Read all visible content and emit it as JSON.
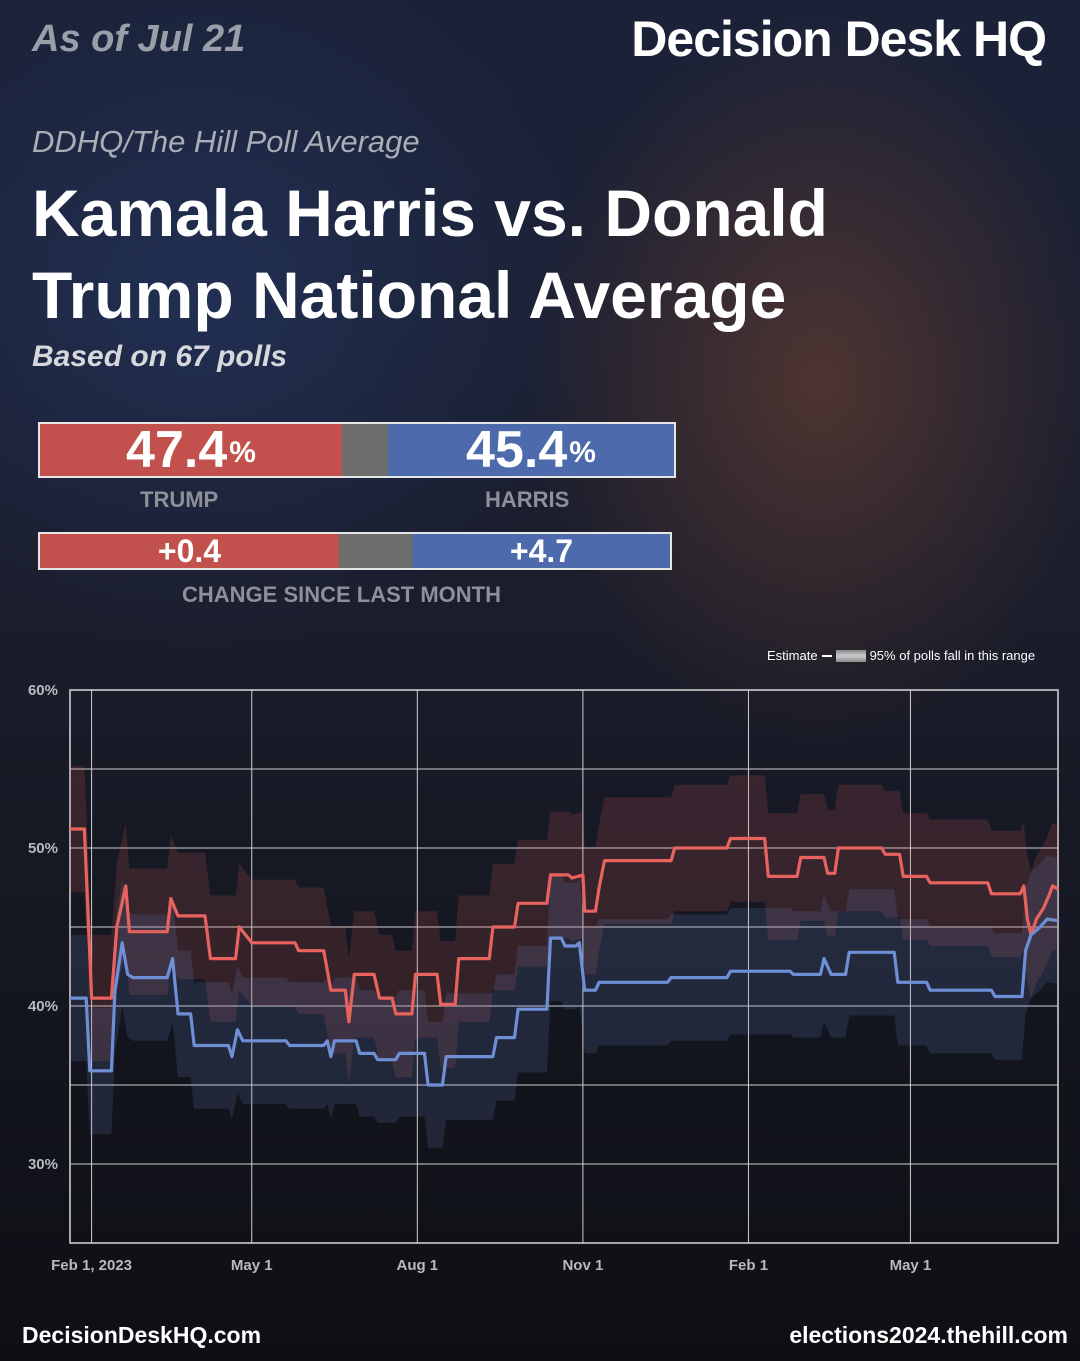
{
  "header": {
    "as_of": "As of Jul 21",
    "logo": "Decision Desk HQ",
    "kicker": "DDHQ/The Hill Poll Average",
    "title": "Kamala Harris vs. Donald Trump National Average",
    "subtitle": "Based on 67 polls"
  },
  "summary": {
    "trump_value": "47.4",
    "harris_value": "45.4",
    "pct_sign": "%",
    "trump_label": "TRUMP",
    "harris_label": "HARRIS",
    "trump_change": "+0.4",
    "harris_change": "+4.7",
    "change_label": "CHANGE SINCE LAST MONTH"
  },
  "legend": {
    "estimate": "Estimate",
    "range": "95% of polls fall in this range"
  },
  "footer": {
    "left": "DecisionDeskHQ.com",
    "right": "elections2024.thehill.com"
  },
  "colors": {
    "trump": "#e8635d",
    "harris": "#6e8fd6",
    "trump_bar": "#c2504c",
    "harris_bar": "#4d6aad"
  },
  "chart_data": {
    "type": "line",
    "title": "Kamala Harris vs. Donald Trump National Average",
    "xlabel": "",
    "ylabel": "",
    "ylim": [
      25,
      60
    ],
    "xlim": [
      "2023-01-20",
      "2024-07-22"
    ],
    "y_ticks": [
      {
        "value": 60,
        "label": "60%"
      },
      {
        "value": 50,
        "label": "50%"
      },
      {
        "value": 40,
        "label": "40%"
      },
      {
        "value": 30,
        "label": "30%"
      }
    ],
    "x_ticks": [
      {
        "date": "2023-02-01",
        "label": "Feb 1, 2023"
      },
      {
        "date": "2023-05-01",
        "label": "May 1"
      },
      {
        "date": "2023-08-01",
        "label": "Aug 1"
      },
      {
        "date": "2023-11-01",
        "label": "Nov 1"
      },
      {
        "date": "2024-02-01",
        "label": "Feb 1"
      },
      {
        "date": "2024-05-01",
        "label": "May 1"
      }
    ],
    "grid": true,
    "series": [
      {
        "name": "TRUMP",
        "color": "#e8635d",
        "band": 4,
        "points": [
          [
            "2023-01-20",
            51.2
          ],
          [
            "2023-01-28",
            51.2
          ],
          [
            "2023-02-01",
            40.5
          ],
          [
            "2023-02-12",
            40.5
          ],
          [
            "2023-02-15",
            45.0
          ],
          [
            "2023-02-20",
            47.6
          ],
          [
            "2023-02-22",
            44.7
          ],
          [
            "2023-03-15",
            44.7
          ],
          [
            "2023-03-17",
            46.8
          ],
          [
            "2023-03-21",
            45.7
          ],
          [
            "2023-04-05",
            45.7
          ],
          [
            "2023-04-08",
            43.0
          ],
          [
            "2023-04-22",
            43.0
          ],
          [
            "2023-04-24",
            45.0
          ],
          [
            "2023-05-01",
            44.0
          ],
          [
            "2023-05-25",
            44.0
          ],
          [
            "2023-05-27",
            43.5
          ],
          [
            "2023-06-10",
            43.5
          ],
          [
            "2023-06-14",
            41.0
          ],
          [
            "2023-06-22",
            41.0
          ],
          [
            "2023-06-24",
            39.0
          ],
          [
            "2023-06-27",
            42.0
          ],
          [
            "2023-07-08",
            42.0
          ],
          [
            "2023-07-11",
            40.5
          ],
          [
            "2023-07-18",
            40.5
          ],
          [
            "2023-07-20",
            39.5
          ],
          [
            "2023-07-29",
            39.5
          ],
          [
            "2023-07-31",
            42.0
          ],
          [
            "2023-08-12",
            42.0
          ],
          [
            "2023-08-14",
            40.1
          ],
          [
            "2023-08-22",
            40.1
          ],
          [
            "2023-08-24",
            43.0
          ],
          [
            "2023-09-10",
            43.0
          ],
          [
            "2023-09-12",
            45.0
          ],
          [
            "2023-09-24",
            45.0
          ],
          [
            "2023-09-26",
            46.5
          ],
          [
            "2023-10-12",
            46.5
          ],
          [
            "2023-10-14",
            48.3
          ],
          [
            "2023-10-24",
            48.3
          ],
          [
            "2023-10-26",
            48.1
          ],
          [
            "2023-11-01",
            48.3
          ],
          [
            "2023-11-02",
            46.0
          ],
          [
            "2023-11-08",
            46.0
          ],
          [
            "2023-11-10",
            47.5
          ],
          [
            "2023-11-13",
            49.2
          ],
          [
            "2023-12-20",
            49.2
          ],
          [
            "2023-12-22",
            50.0
          ],
          [
            "2024-01-20",
            50.0
          ],
          [
            "2024-01-22",
            50.6
          ],
          [
            "2024-02-10",
            50.6
          ],
          [
            "2024-02-12",
            48.2
          ],
          [
            "2024-02-28",
            48.2
          ],
          [
            "2024-03-01",
            49.4
          ],
          [
            "2024-03-14",
            49.4
          ],
          [
            "2024-03-16",
            48.4
          ],
          [
            "2024-03-20",
            48.4
          ],
          [
            "2024-03-22",
            50.0
          ],
          [
            "2024-04-15",
            50.0
          ],
          [
            "2024-04-17",
            49.6
          ],
          [
            "2024-04-25",
            49.6
          ],
          [
            "2024-04-27",
            48.2
          ],
          [
            "2024-05-10",
            48.2
          ],
          [
            "2024-05-12",
            47.8
          ],
          [
            "2024-06-13",
            47.8
          ],
          [
            "2024-06-15",
            47.1
          ],
          [
            "2024-07-01",
            47.1
          ],
          [
            "2024-07-03",
            47.6
          ],
          [
            "2024-07-05",
            45.5
          ],
          [
            "2024-07-07",
            44.5
          ],
          [
            "2024-07-10",
            45.5
          ],
          [
            "2024-07-14",
            46.2
          ],
          [
            "2024-07-17",
            47.0
          ],
          [
            "2024-07-19",
            47.6
          ],
          [
            "2024-07-22",
            47.4
          ]
        ]
      },
      {
        "name": "HARRIS",
        "color": "#6e8fd6",
        "band": 4,
        "points": [
          [
            "2023-01-20",
            40.5
          ],
          [
            "2023-01-29",
            40.5
          ],
          [
            "2023-01-31",
            35.9
          ],
          [
            "2023-02-12",
            35.9
          ],
          [
            "2023-02-14",
            41.0
          ],
          [
            "2023-02-18",
            44.0
          ],
          [
            "2023-02-21",
            42.0
          ],
          [
            "2023-02-24",
            41.8
          ],
          [
            "2023-03-15",
            41.8
          ],
          [
            "2023-03-18",
            43.0
          ],
          [
            "2023-03-21",
            39.5
          ],
          [
            "2023-03-28",
            39.5
          ],
          [
            "2023-03-30",
            37.5
          ],
          [
            "2023-04-18",
            37.5
          ],
          [
            "2023-04-20",
            36.8
          ],
          [
            "2023-04-23",
            38.5
          ],
          [
            "2023-04-26",
            37.8
          ],
          [
            "2023-05-20",
            37.8
          ],
          [
            "2023-05-22",
            37.5
          ],
          [
            "2023-06-10",
            37.5
          ],
          [
            "2023-06-12",
            37.8
          ],
          [
            "2023-06-14",
            36.8
          ],
          [
            "2023-06-16",
            37.8
          ],
          [
            "2023-06-28",
            37.8
          ],
          [
            "2023-06-30",
            37.0
          ],
          [
            "2023-07-08",
            37.0
          ],
          [
            "2023-07-10",
            36.6
          ],
          [
            "2023-07-20",
            36.6
          ],
          [
            "2023-07-22",
            37.0
          ],
          [
            "2023-08-05",
            37.0
          ],
          [
            "2023-08-07",
            35.0
          ],
          [
            "2023-08-15",
            35.0
          ],
          [
            "2023-08-17",
            36.8
          ],
          [
            "2023-09-12",
            36.8
          ],
          [
            "2023-09-14",
            38.0
          ],
          [
            "2023-09-24",
            38.0
          ],
          [
            "2023-09-26",
            39.8
          ],
          [
            "2023-10-12",
            39.8
          ],
          [
            "2023-10-14",
            44.3
          ],
          [
            "2023-10-20",
            44.3
          ],
          [
            "2023-10-22",
            43.8
          ],
          [
            "2023-10-28",
            43.8
          ],
          [
            "2023-10-30",
            44.0
          ],
          [
            "2023-11-02",
            41.0
          ],
          [
            "2023-11-08",
            41.0
          ],
          [
            "2023-11-10",
            41.5
          ],
          [
            "2023-12-18",
            41.5
          ],
          [
            "2023-12-20",
            41.8
          ],
          [
            "2024-01-20",
            41.8
          ],
          [
            "2024-01-22",
            42.2
          ],
          [
            "2024-02-24",
            42.2
          ],
          [
            "2024-02-26",
            42.0
          ],
          [
            "2024-03-12",
            42.0
          ],
          [
            "2024-03-14",
            43.0
          ],
          [
            "2024-03-18",
            42.0
          ],
          [
            "2024-03-26",
            42.0
          ],
          [
            "2024-03-28",
            43.4
          ],
          [
            "2024-04-22",
            43.4
          ],
          [
            "2024-04-24",
            41.5
          ],
          [
            "2024-05-10",
            41.5
          ],
          [
            "2024-05-12",
            41.0
          ],
          [
            "2024-06-15",
            41.0
          ],
          [
            "2024-06-17",
            40.6
          ],
          [
            "2024-07-02",
            40.6
          ],
          [
            "2024-07-04",
            43.5
          ],
          [
            "2024-07-07",
            44.5
          ],
          [
            "2024-07-12",
            45.0
          ],
          [
            "2024-07-16",
            45.5
          ],
          [
            "2024-07-22",
            45.4
          ]
        ]
      }
    ]
  }
}
